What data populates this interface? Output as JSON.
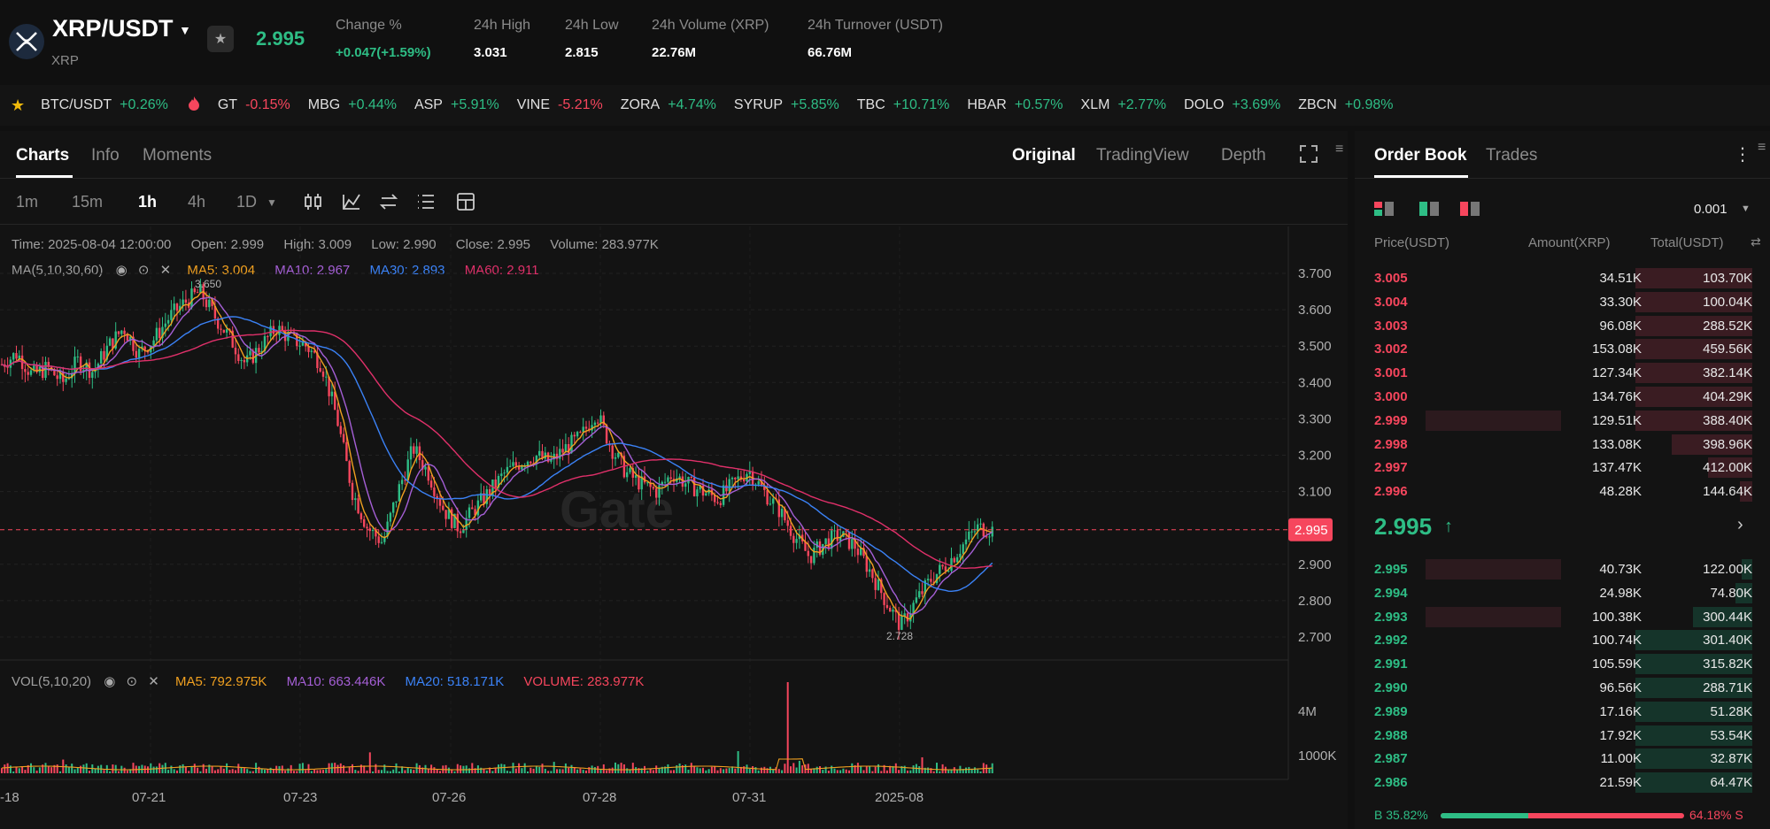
{
  "header": {
    "pair": "XRP/USDT",
    "base": "XRP",
    "last_price": "2.995",
    "stats": [
      {
        "label": "Change %",
        "value": "+0.047(+1.59%)",
        "color": "#2ebd85"
      },
      {
        "label": "24h High",
        "value": "3.031"
      },
      {
        "label": "24h Low",
        "value": "2.815"
      },
      {
        "label": "24h Volume (XRP)",
        "value": "22.76M"
      },
      {
        "label": "24h Turnover (USDT)",
        "value": "66.76M"
      }
    ]
  },
  "ticker": [
    {
      "symbol": "BTC/USDT",
      "change": "+0.26%",
      "dir": "up"
    },
    {
      "symbol": "GT",
      "change": "-0.15%",
      "dir": "down"
    },
    {
      "symbol": "MBG",
      "change": "+0.44%",
      "dir": "up"
    },
    {
      "symbol": "ASP",
      "change": "+5.91%",
      "dir": "up"
    },
    {
      "symbol": "VINE",
      "change": "-5.21%",
      "dir": "down"
    },
    {
      "symbol": "ZORA",
      "change": "+4.74%",
      "dir": "up"
    },
    {
      "symbol": "SYRUP",
      "change": "+5.85%",
      "dir": "up"
    },
    {
      "symbol": "TBC",
      "change": "+10.71%",
      "dir": "up"
    },
    {
      "symbol": "HBAR",
      "change": "+0.57%",
      "dir": "up"
    },
    {
      "symbol": "XLM",
      "change": "+2.77%",
      "dir": "up"
    },
    {
      "symbol": "DOLO",
      "change": "+3.69%",
      "dir": "up"
    },
    {
      "symbol": "ZBCN",
      "change": "+0.98%",
      "dir": "up"
    }
  ],
  "tabs": [
    "Charts",
    "Info",
    "Moments"
  ],
  "view_tabs": [
    "Original",
    "TradingView",
    "Depth"
  ],
  "timeframes": [
    "1m",
    "15m",
    "1h",
    "4h",
    "1D"
  ],
  "timeframe_active": "1h",
  "ohlc": {
    "time": "Time: 2025-08-04 12:00:00",
    "open": "Open: 2.999",
    "high": "High: 3.009",
    "low": "Low: 2.990",
    "close": "Close: 2.995",
    "volume": "Volume: 283.977K"
  },
  "ma": {
    "label": "MA(5,10,30,60)",
    "ma5": "MA5: 3.004",
    "ma10": "MA10: 2.967",
    "ma30": "MA30: 2.893",
    "ma60": "MA60: 2.911"
  },
  "vol": {
    "label": "VOL(5,10,20)",
    "ma5": "MA5: 792.975K",
    "ma10": "MA10: 663.446K",
    "ma20": "MA20: 518.171K",
    "volume": "VOLUME: 283.977K"
  },
  "colors": {
    "up": "#2ebd85",
    "down": "#f6465d",
    "ma5": "#f0a020",
    "ma10": "#a55fd6",
    "ma30": "#3b82f6",
    "ma60": "#e0306a"
  },
  "chart_data": {
    "type": "candlestick",
    "y_ticks": [
      "3.700",
      "3.600",
      "3.500",
      "3.400",
      "3.300",
      "3.200",
      "3.100",
      "2.900",
      "2.800",
      "2.700"
    ],
    "ylim": [
      2.65,
      3.72
    ],
    "x_ticks": [
      "-18",
      "07-21",
      "07-23",
      "07-26",
      "07-28",
      "07-31",
      "2025-08"
    ],
    "current_price_label": "2.995",
    "current_price": 2.995,
    "max_label": "3.650",
    "min_label": "2.728",
    "vol_ticks": [
      "4M",
      "1000K"
    ],
    "price_path": [
      3.45,
      3.48,
      3.42,
      3.44,
      3.4,
      3.46,
      3.43,
      3.5,
      3.55,
      3.48,
      3.52,
      3.58,
      3.62,
      3.65,
      3.58,
      3.52,
      3.45,
      3.5,
      3.55,
      3.52,
      3.5,
      3.45,
      3.3,
      3.1,
      3.0,
      2.96,
      3.1,
      3.22,
      3.15,
      3.05,
      3.0,
      3.05,
      3.1,
      3.15,
      3.18,
      3.2,
      3.18,
      3.22,
      3.25,
      3.32,
      3.22,
      3.15,
      3.12,
      3.1,
      3.15,
      3.12,
      3.1,
      3.08,
      3.12,
      3.16,
      3.1,
      3.05,
      2.98,
      2.92,
      2.96,
      2.98,
      2.95,
      2.88,
      2.8,
      2.73,
      2.8,
      2.86,
      2.9,
      2.95,
      3.0,
      2.995
    ],
    "ma60_path": [
      3.3,
      3.35,
      3.38,
      3.4,
      3.42,
      3.44,
      3.46,
      3.48,
      3.5,
      3.52,
      3.5,
      3.46,
      3.4,
      3.32,
      3.25,
      3.18,
      3.14,
      3.12,
      3.12,
      3.14,
      3.15,
      3.16,
      3.16,
      3.15,
      3.13,
      3.12,
      3.1,
      3.08,
      3.04,
      3.0,
      2.96,
      2.92,
      2.91
    ],
    "volume_spikes": [
      0.15,
      0.1,
      0.2,
      0.1,
      0.12,
      0.3,
      0.1,
      0.08,
      0.2,
      0.1,
      0.15,
      0.9,
      0.2,
      0.1,
      0.25,
      0.18
    ]
  },
  "order_book": {
    "tabs": [
      "Order Book",
      "Trades"
    ],
    "precision": "0.001",
    "headers": [
      "Price(USDT)",
      "Amount(XRP)",
      "Total(USDT)"
    ],
    "asks": [
      {
        "price": "3.005",
        "amount": "34.51K",
        "total": "103.70K",
        "depth": 0.55,
        "amt": 0
      },
      {
        "price": "3.004",
        "amount": "33.30K",
        "total": "100.04K",
        "depth": 0.55,
        "amt": 0
      },
      {
        "price": "3.003",
        "amount": "96.08K",
        "total": "288.52K",
        "depth": 0.55,
        "amt": 0
      },
      {
        "price": "3.002",
        "amount": "153.08K",
        "total": "459.56K",
        "depth": 0.55,
        "amt": 0
      },
      {
        "price": "3.001",
        "amount": "127.34K",
        "total": "382.14K",
        "depth": 0.55,
        "amt": 0
      },
      {
        "price": "3.000",
        "amount": "134.76K",
        "total": "404.29K",
        "depth": 0.55,
        "amt": 0
      },
      {
        "price": "2.999",
        "amount": "129.51K",
        "total": "388.40K",
        "depth": 0.55,
        "amt": 0.45
      },
      {
        "price": "2.998",
        "amount": "133.08K",
        "total": "398.96K",
        "depth": 0.38,
        "amt": 0
      },
      {
        "price": "2.997",
        "amount": "137.47K",
        "total": "412.00K",
        "depth": 0.21,
        "amt": 0
      },
      {
        "price": "2.996",
        "amount": "48.28K",
        "total": "144.64K",
        "depth": 0.06,
        "amt": 0
      }
    ],
    "mid_price": "2.995",
    "bids": [
      {
        "price": "2.995",
        "amount": "40.73K",
        "total": "122.00K",
        "depth": 0.05,
        "amt": 0.45
      },
      {
        "price": "2.994",
        "amount": "24.98K",
        "total": "74.80K",
        "depth": 0.08,
        "amt": 0
      },
      {
        "price": "2.993",
        "amount": "100.38K",
        "total": "300.44K",
        "depth": 0.28,
        "amt": 0.45
      },
      {
        "price": "2.992",
        "amount": "100.74K",
        "total": "301.40K",
        "depth": 0.55,
        "amt": 0
      },
      {
        "price": "2.991",
        "amount": "105.59K",
        "total": "315.82K",
        "depth": 0.55,
        "amt": 0
      },
      {
        "price": "2.990",
        "amount": "96.56K",
        "total": "288.71K",
        "depth": 0.55,
        "amt": 0
      },
      {
        "price": "2.989",
        "amount": "17.16K",
        "total": "51.28K",
        "depth": 0.55,
        "amt": 0
      },
      {
        "price": "2.988",
        "amount": "17.92K",
        "total": "53.54K",
        "depth": 0.55,
        "amt": 0
      },
      {
        "price": "2.987",
        "amount": "11.00K",
        "total": "32.87K",
        "depth": 0.55,
        "amt": 0
      },
      {
        "price": "2.986",
        "amount": "21.59K",
        "total": "64.47K",
        "depth": 0.55,
        "amt": 0
      }
    ],
    "buy_ratio": "B 35.82%",
    "sell_ratio": "64.18% S",
    "buy_fraction": 0.3582
  }
}
